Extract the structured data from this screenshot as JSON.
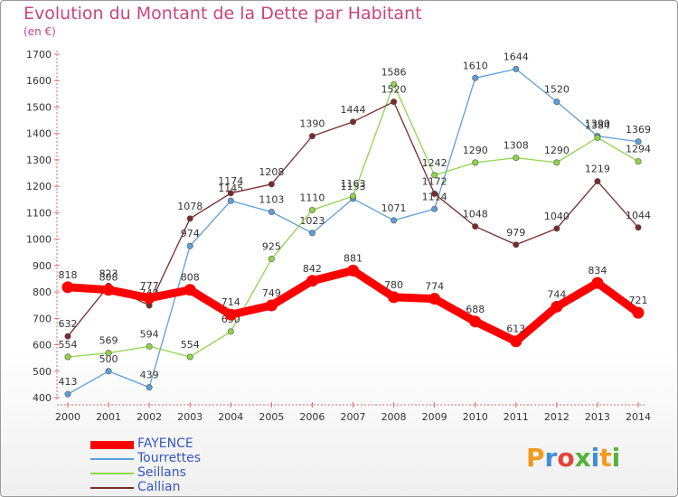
{
  "title": "Evolution du Montant de la Dette par Habitant",
  "subtitle": "(en €)",
  "brand": {
    "text": "Proxiti",
    "letters": [
      {
        "ch": "P",
        "color": "#f29a1c"
      },
      {
        "ch": "r",
        "color": "#3d8fd6"
      },
      {
        "ch": "o",
        "color": "#e2433b"
      },
      {
        "ch": "x",
        "color": "#56b23a"
      },
      {
        "ch": "i",
        "color": "#3d8fd6"
      },
      {
        "ch": "t",
        "color": "#f29a1c"
      },
      {
        "ch": "i",
        "color": "#56b23a"
      }
    ]
  },
  "chart_data": {
    "type": "line",
    "title": "Evolution du Montant de la Dette par Habitant",
    "ylabel": "(en €)",
    "xlabel": "",
    "x": [
      2000,
      2001,
      2002,
      2003,
      2004,
      2005,
      2006,
      2007,
      2008,
      2009,
      2010,
      2011,
      2012,
      2013,
      2014
    ],
    "ylim": [
      400,
      1700
    ],
    "yticks": [
      400,
      500,
      600,
      700,
      800,
      900,
      1000,
      1100,
      1200,
      1300,
      1400,
      1500,
      1600,
      1700
    ],
    "grid": false,
    "legend_position": "bottom-left",
    "series": [
      {
        "name": "FAYENCE",
        "color": "#ff0000",
        "values": [
          818,
          808,
          777,
          808,
          714,
          749,
          842,
          881,
          780,
          774,
          688,
          613,
          744,
          834,
          721
        ]
      },
      {
        "name": "Tourrettes",
        "color": "#5e9fd8",
        "values": [
          413,
          500,
          439,
          974,
          1145,
          1103,
          1023,
          1153,
          1071,
          1114,
          1610,
          1644,
          1520,
          1390,
          1369
        ]
      },
      {
        "name": "Seillans",
        "color": "#8fd44a",
        "values": [
          554,
          569,
          594,
          554,
          650,
          925,
          1110,
          1163,
          1586,
          1242,
          1290,
          1308,
          1290,
          1384,
          1294
        ]
      },
      {
        "name": "Callian",
        "color": "#7a2a2a",
        "values": [
          632,
          823,
          749,
          1078,
          1174,
          1208,
          1390,
          1444,
          1520,
          1172,
          1048,
          979,
          1040,
          1219,
          1044
        ]
      }
    ]
  }
}
